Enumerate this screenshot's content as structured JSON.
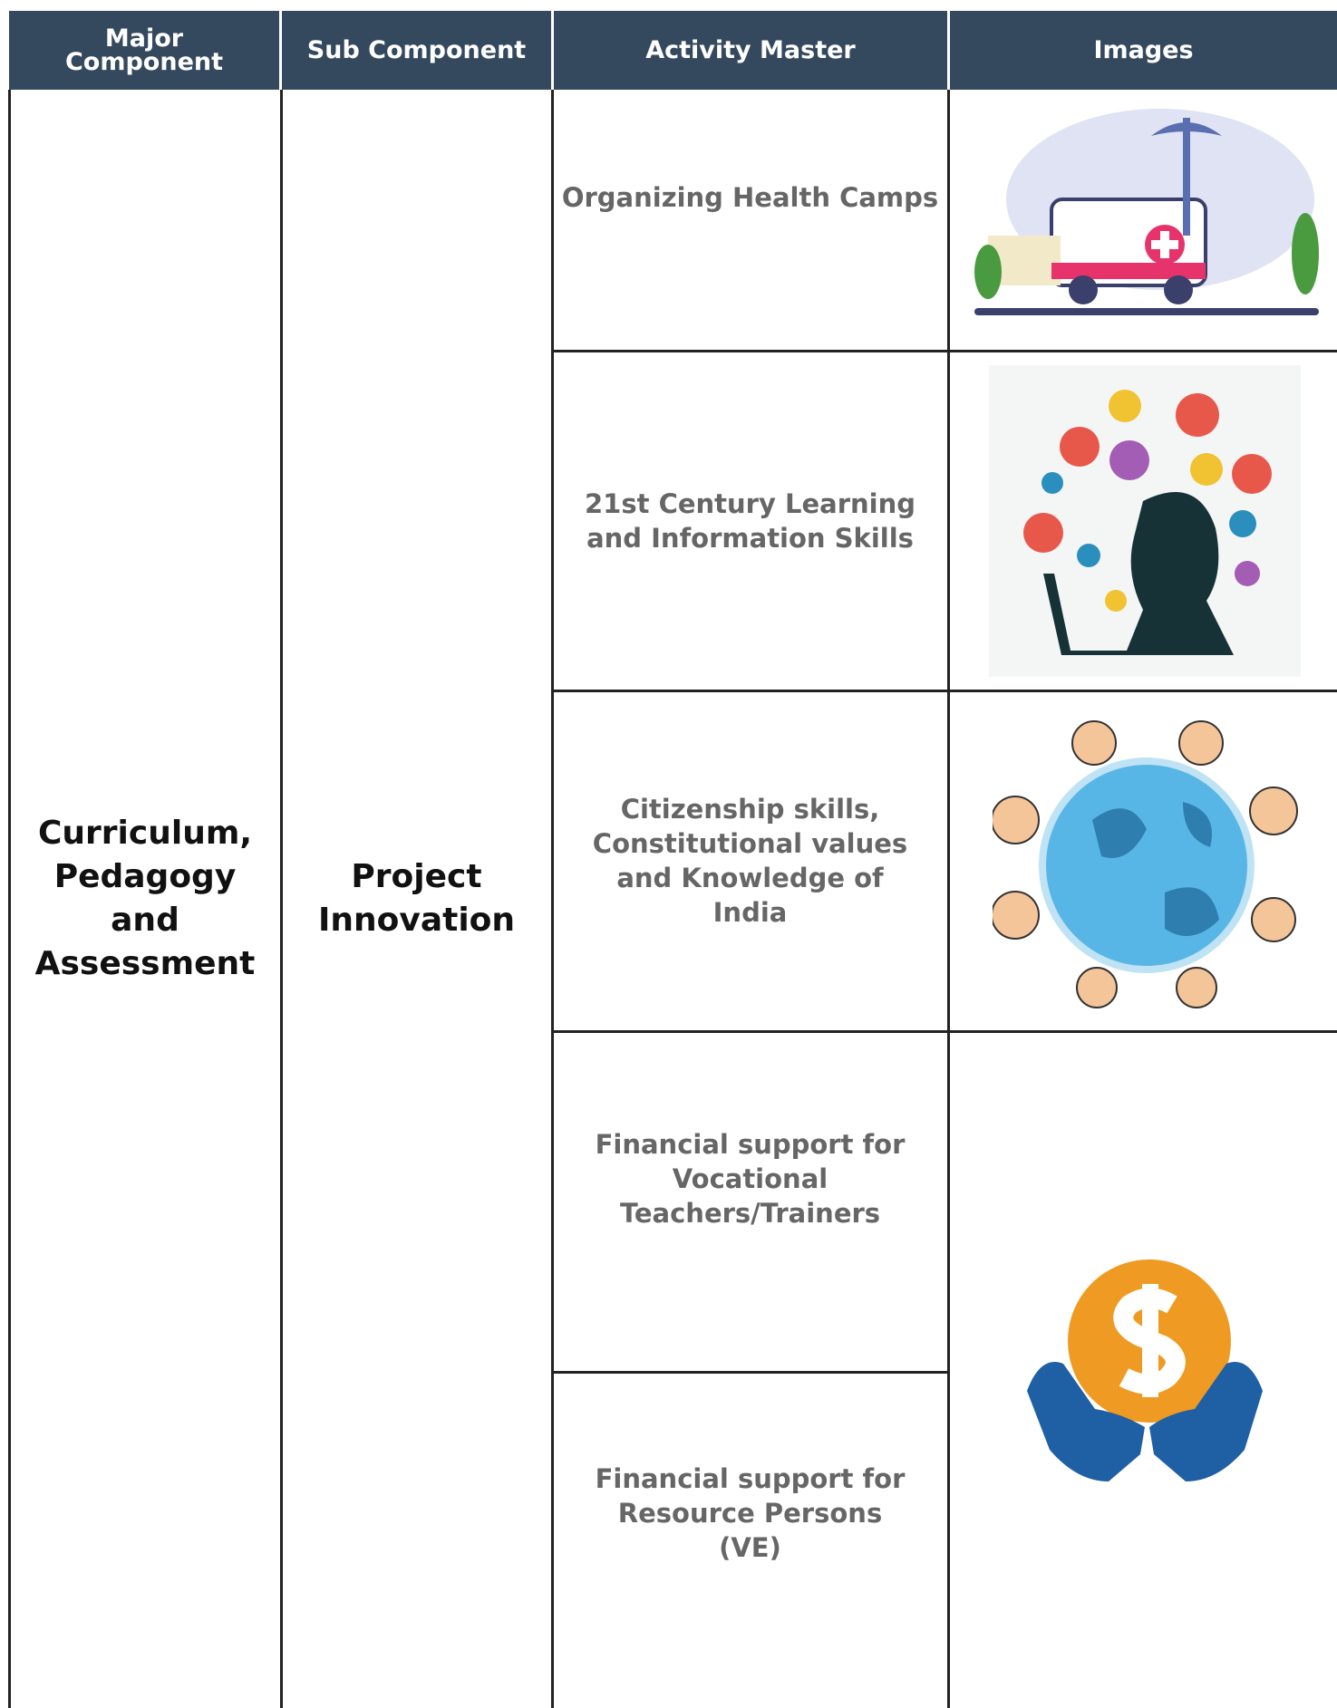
{
  "header": {
    "columns": [
      "Major Component",
      "Sub Component",
      "Activity Master",
      "Images"
    ]
  },
  "table": {
    "major_component": "Curriculum, Pedagogy and Assessment",
    "sub_component": "Project Innovation",
    "activities": [
      "Organizing Health Camps",
      "21st Century Learning and Information Skills",
      "Citizenship skills, Constitutional values and Knowledge of India",
      "Financial support for Vocational Teachers/Trainers",
      "Financial support for Resource Persons (VE)"
    ]
  }
}
